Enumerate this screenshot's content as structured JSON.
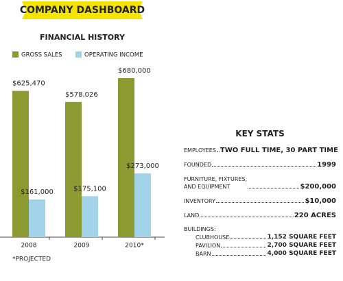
{
  "header": {
    "title": "COMPANY DASHBOARD"
  },
  "chart_data": {
    "type": "bar",
    "title": "FINANCIAL HISTORY",
    "categories": [
      "2008",
      "2009",
      "2010*"
    ],
    "series": [
      {
        "name": "GROSS SALES",
        "color": "#8c9b31",
        "values": [
          625470,
          578026,
          680000
        ],
        "value_labels": [
          "$625,470",
          "$578,026",
          "$680,000"
        ]
      },
      {
        "name": "OPERATING INCOME",
        "color": "#a3d3e8",
        "values": [
          161000,
          175100,
          273000
        ],
        "value_labels": [
          "$161,000",
          "$175,100",
          "$273,000"
        ]
      }
    ]
  },
  "footnote": "*PROJECTED",
  "key_stats": {
    "title": "KEY STATS",
    "items": [
      {
        "label": "EMPLOYEES",
        "value": "TWO FULL TIME, 30 PART TIME"
      },
      {
        "label": "FOUNDED",
        "value": "1999"
      },
      {
        "label": [
          "FURNITURE, FIXTURES,",
          "AND EQUIPMENT"
        ],
        "value": "$200,000"
      },
      {
        "label": "INVENTORY",
        "value": "$10,000"
      },
      {
        "label": "LAND",
        "value": "220 ACRES"
      }
    ],
    "buildings": {
      "label": "BUILDINGS:",
      "items": [
        {
          "label": "CLUBHOUSE",
          "value": "1,152 SQUARE FEET"
        },
        {
          "label": "PAVILION",
          "value": "2,700 SQUARE FEET"
        },
        {
          "label": "BARN",
          "value": "4,000 SQUARE FEET"
        }
      ]
    }
  }
}
